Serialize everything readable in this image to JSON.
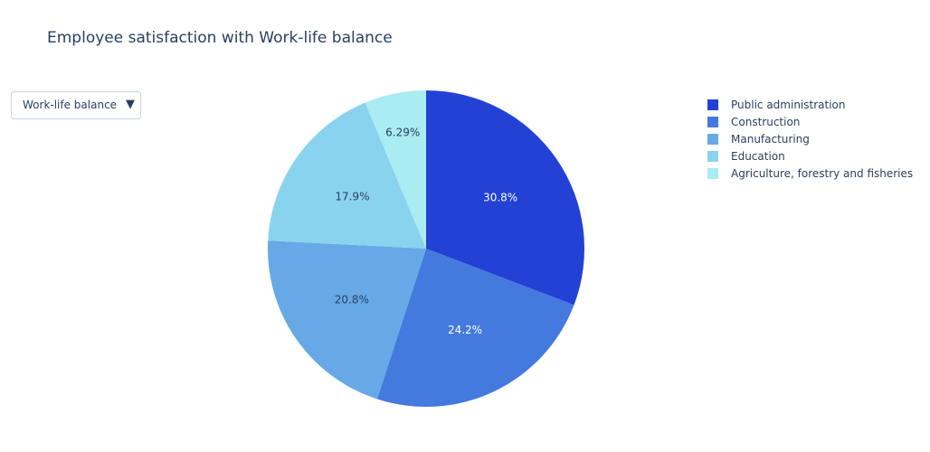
{
  "chart_data": {
    "type": "pie",
    "title": "Employee satisfaction with Work-life balance",
    "labels": [
      "Public administration",
      "Construction",
      "Manufacturing",
      "Education",
      "Agriculture, forestry and fisheries"
    ],
    "values": [
      30.8,
      24.2,
      20.8,
      17.9,
      6.29
    ],
    "value_labels": [
      "30.8%",
      "24.2%",
      "20.8%",
      "17.9%",
      "6.29%"
    ],
    "colors": [
      "#2341d4",
      "#4479de",
      "#66a9e6",
      "#8ad3ee",
      "#a9ecf2"
    ],
    "label_colors": [
      "#ffffff",
      "#ffffff",
      "#2a3f5f",
      "#2a3f5f",
      "#2a3f5f"
    ],
    "direction": "clockwise",
    "start_angle": "top",
    "legend_position": "top-right",
    "dropdown": {
      "selected": "Work-life balance",
      "arrow_icon": "triangle-down-icon"
    }
  }
}
